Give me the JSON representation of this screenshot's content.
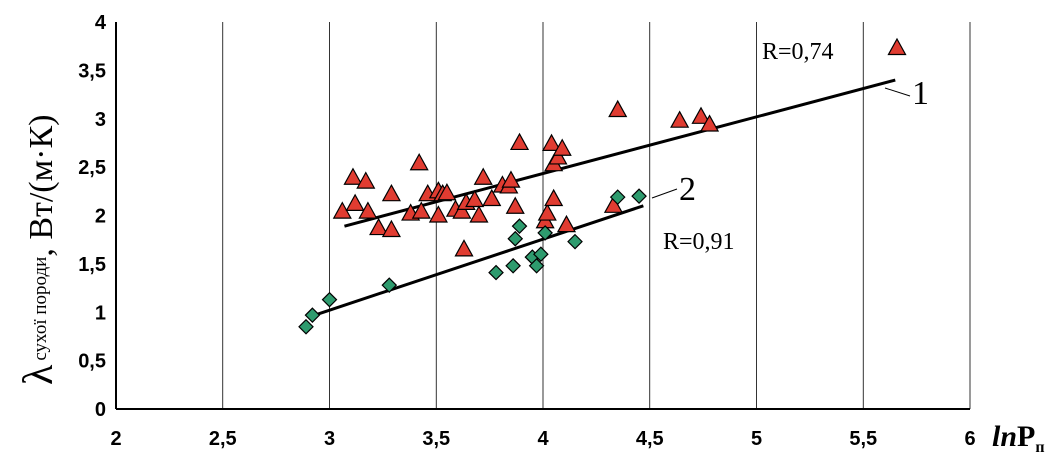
{
  "chart_data": {
    "type": "scatter",
    "xlim": [
      2,
      6
    ],
    "ylim": [
      0,
      4
    ],
    "x_ticks": [
      "2",
      "2,5",
      "3",
      "3,5",
      "4",
      "4,5",
      "5",
      "5,5",
      "6"
    ],
    "y_ticks": [
      "0",
      "0,5",
      "1",
      "1,5",
      "2",
      "2,5",
      "3",
      "3,5",
      "4"
    ],
    "xlabel": {
      "italic": "ln",
      "main": "P",
      "sub": "п"
    },
    "ylabel": {
      "symbol": "λ",
      "sub": "сухої породи",
      "unit": ", Вт/(м·К)"
    },
    "grid": {
      "vertical": true,
      "horizontal": false
    },
    "legend_marker": "triangle",
    "series": [
      {
        "marker": "triangle",
        "color": "#E03C31",
        "r_label": "R=0,74",
        "line_label": "1",
        "trend": [
          [
            3.07,
            1.89
          ],
          [
            5.65,
            3.4
          ]
        ],
        "points": [
          [
            3.06,
            2.04
          ],
          [
            3.11,
            2.39
          ],
          [
            3.12,
            2.12
          ],
          [
            3.17,
            2.35
          ],
          [
            3.18,
            2.04
          ],
          [
            3.23,
            1.87
          ],
          [
            3.29,
            1.85
          ],
          [
            3.29,
            2.22
          ],
          [
            3.38,
            2.02
          ],
          [
            3.42,
            2.54
          ],
          [
            3.43,
            2.04
          ],
          [
            3.46,
            2.22
          ],
          [
            3.51,
            2.25
          ],
          [
            3.51,
            2.0
          ],
          [
            3.53,
            2.22
          ],
          [
            3.55,
            2.23
          ],
          [
            3.59,
            2.06
          ],
          [
            3.62,
            2.04
          ],
          [
            3.63,
            1.65
          ],
          [
            3.64,
            2.13
          ],
          [
            3.68,
            2.16
          ],
          [
            3.7,
            2.0
          ],
          [
            3.72,
            2.39
          ],
          [
            3.76,
            2.17
          ],
          [
            3.81,
            2.31
          ],
          [
            3.84,
            2.3
          ],
          [
            3.85,
            2.36
          ],
          [
            3.87,
            2.09
          ],
          [
            3.89,
            2.75
          ],
          [
            4.01,
            1.94
          ],
          [
            4.02,
            2.02
          ],
          [
            4.04,
            2.74
          ],
          [
            4.05,
            2.17
          ],
          [
            4.05,
            2.53
          ],
          [
            4.07,
            2.6
          ],
          [
            4.09,
            2.69
          ],
          [
            4.11,
            1.9
          ],
          [
            4.33,
            2.1
          ],
          [
            4.35,
            3.09
          ],
          [
            4.64,
            2.98
          ],
          [
            4.74,
            3.02
          ],
          [
            4.78,
            2.94
          ]
        ]
      },
      {
        "marker": "diamond",
        "color": "#2E9B6E",
        "r_label": "R=0,91",
        "line_label": "2",
        "trend": [
          [
            2.93,
            0.97
          ],
          [
            4.47,
            2.1
          ]
        ],
        "points": [
          [
            2.89,
            0.85
          ],
          [
            2.92,
            0.97
          ],
          [
            3.0,
            1.13
          ],
          [
            3.28,
            1.28
          ],
          [
            3.78,
            1.41
          ],
          [
            3.86,
            1.48
          ],
          [
            3.87,
            1.76
          ],
          [
            3.89,
            1.89
          ],
          [
            3.95,
            1.57
          ],
          [
            3.97,
            1.48
          ],
          [
            3.99,
            1.6
          ],
          [
            4.01,
            1.82
          ],
          [
            4.15,
            1.73
          ],
          [
            4.35,
            2.19
          ],
          [
            4.45,
            2.2
          ]
        ]
      }
    ]
  }
}
